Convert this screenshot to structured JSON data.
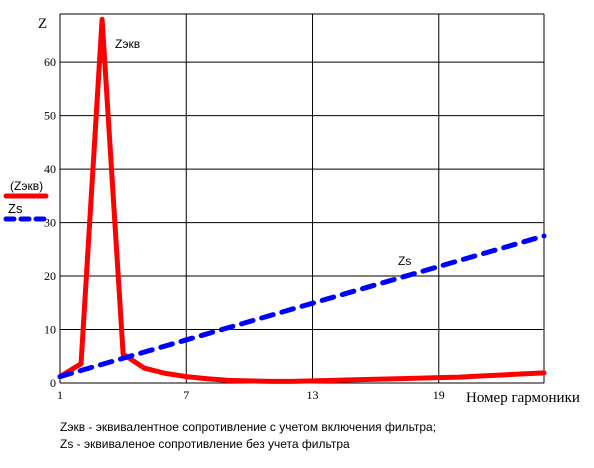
{
  "chart_data": {
    "type": "line",
    "ylabel": "Z",
    "xlabel": "Номер гармоники",
    "xlim": [
      1,
      24
    ],
    "ylim": [
      0,
      69
    ],
    "x_ticks": [
      1,
      7,
      13,
      19
    ],
    "y_ticks": [
      0,
      10,
      20,
      30,
      40,
      50,
      60
    ],
    "grid": true,
    "series": [
      {
        "name": "(Zэкв)",
        "color": "#ff0000",
        "dash": "solid",
        "annotation": "Zэкв",
        "x": [
          1,
          2,
          3,
          4,
          5,
          6,
          7,
          8,
          9,
          10,
          11,
          12,
          13,
          14,
          15,
          16,
          17,
          18,
          19,
          20,
          21,
          22,
          23,
          24
        ],
        "y": [
          1.2,
          3.6,
          68.0,
          5.4,
          2.8,
          1.8,
          1.2,
          0.8,
          0.5,
          0.4,
          0.3,
          0.3,
          0.4,
          0.5,
          0.6,
          0.7,
          0.8,
          0.9,
          1.0,
          1.1,
          1.3,
          1.5,
          1.7,
          1.9
        ]
      },
      {
        "name": "Zs",
        "color": "#0000ff",
        "dash": "dashed",
        "annotation": "Zs",
        "x": [
          1,
          24
        ],
        "y": [
          1.2,
          27.5
        ]
      }
    ]
  },
  "notes": [
    "Zэкв - эквивалентное сопротивление с учетом включения фильтра;",
    "Zs - эквиваленое сопротивление без учета фильтра"
  ]
}
